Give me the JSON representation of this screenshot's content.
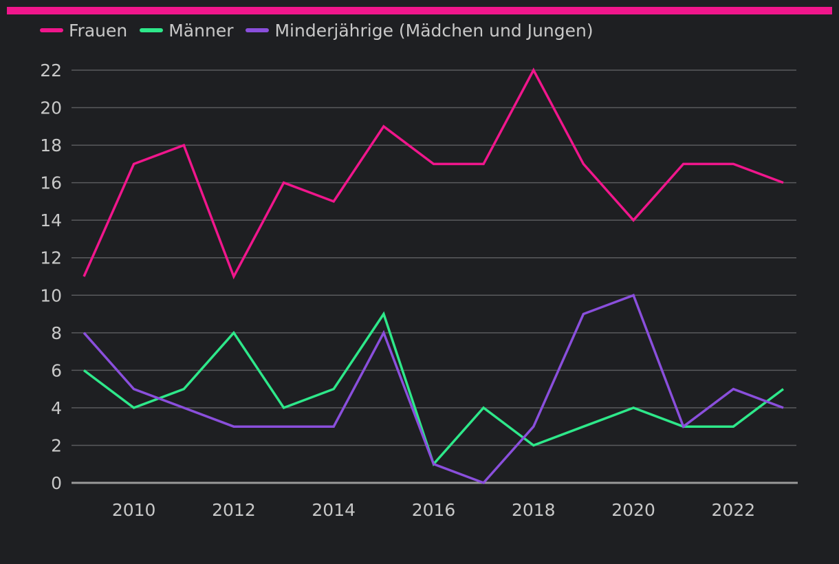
{
  "chart_data": {
    "type": "line",
    "title": "",
    "xlabel": "",
    "ylabel": "",
    "ylim": [
      0,
      22
    ],
    "xlim": [
      2009,
      2023
    ],
    "grid": true,
    "legend_position": "top-left",
    "x": [
      2009,
      2010,
      2011,
      2012,
      2013,
      2014,
      2015,
      2016,
      2017,
      2018,
      2019,
      2020,
      2021,
      2022,
      2023
    ],
    "x_ticks": [
      2010,
      2012,
      2014,
      2016,
      2018,
      2020,
      2022
    ],
    "x_tick_labels": [
      "2010",
      "2012",
      "2014",
      "2016",
      "2018",
      "2020",
      "2022"
    ],
    "y_ticks": [
      0,
      2,
      4,
      6,
      8,
      10,
      12,
      14,
      16,
      18,
      20,
      22
    ],
    "y_tick_labels": [
      "0",
      "2",
      "4",
      "6",
      "8",
      "10",
      "12",
      "14",
      "16",
      "18",
      "20",
      "22"
    ],
    "series": [
      {
        "name": "Frauen",
        "color": "#f0168c",
        "values": [
          11,
          17,
          18,
          11,
          16,
          15,
          19,
          17,
          17,
          22,
          17,
          14,
          17,
          17,
          16
        ]
      },
      {
        "name": "Männer",
        "color": "#2ee88a",
        "values": [
          6,
          4,
          5,
          8,
          4,
          5,
          9,
          1,
          4,
          2,
          3,
          4,
          3,
          3,
          5
        ]
      },
      {
        "name": "Minderjährige (Mädchen und Jungen)",
        "color": "#8a4fdc",
        "values": [
          8,
          5,
          4,
          3,
          3,
          3,
          8,
          1,
          0,
          3,
          9,
          10,
          3,
          5,
          4
        ]
      }
    ]
  },
  "colors": {
    "background": "#1e1f22",
    "accent_bar": "#f0168c",
    "grid": "#5a5b5e",
    "axis": "#9a9a9a",
    "text": "#c8c8c8"
  }
}
